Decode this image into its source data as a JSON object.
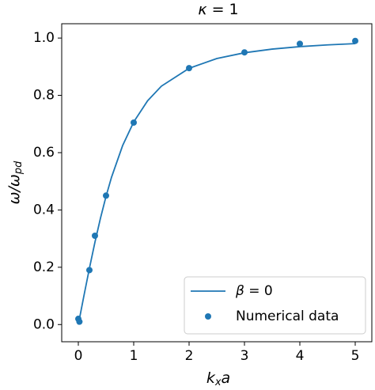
{
  "chart_data": {
    "type": "line",
    "title": [
      "κ",
      " = 1"
    ],
    "xlabel": [
      "k",
      "x",
      "a"
    ],
    "ylabel": [
      "ω/ω",
      "pd"
    ],
    "xlim": [
      -0.3,
      5.3
    ],
    "ylim": [
      -0.06,
      1.05
    ],
    "xticks": [
      0,
      1,
      2,
      3,
      4,
      5
    ],
    "yticks": [
      {
        "value": 0,
        "label": "0.0"
      },
      {
        "value": 0.2,
        "label": "0.2"
      },
      {
        "value": 0.4,
        "label": "0.4"
      },
      {
        "value": 0.6,
        "label": "0.6"
      },
      {
        "value": 0.8,
        "label": "0.8"
      },
      {
        "value": 1,
        "label": "1.0"
      }
    ],
    "legend": "lower right",
    "series": [
      {
        "name": [
          "β",
          " = 0"
        ],
        "kind": "line",
        "color": "#1f77b4",
        "x": [
          0,
          0.1,
          0.2,
          0.3,
          0.4,
          0.5,
          0.6,
          0.8,
          1,
          1.25,
          1.5,
          2,
          2.5,
          3,
          3.5,
          4,
          4.5,
          5
        ],
        "values": [
          0,
          0.0995,
          0.1961,
          0.2873,
          0.3714,
          0.4472,
          0.5145,
          0.6247,
          0.7071,
          0.7809,
          0.8321,
          0.8944,
          0.9285,
          0.9487,
          0.9615,
          0.9701,
          0.9762,
          0.9806
        ]
      },
      {
        "name": [
          "Numerical data"
        ],
        "kind": "scatter",
        "color": "#1f77b4",
        "x": [
          0,
          0.02,
          0.2,
          0.3,
          0.5,
          1,
          2,
          3,
          4,
          5
        ],
        "values": [
          0.02,
          0.01,
          0.19,
          0.31,
          0.45,
          0.705,
          0.895,
          0.95,
          0.98,
          0.99
        ]
      }
    ]
  }
}
